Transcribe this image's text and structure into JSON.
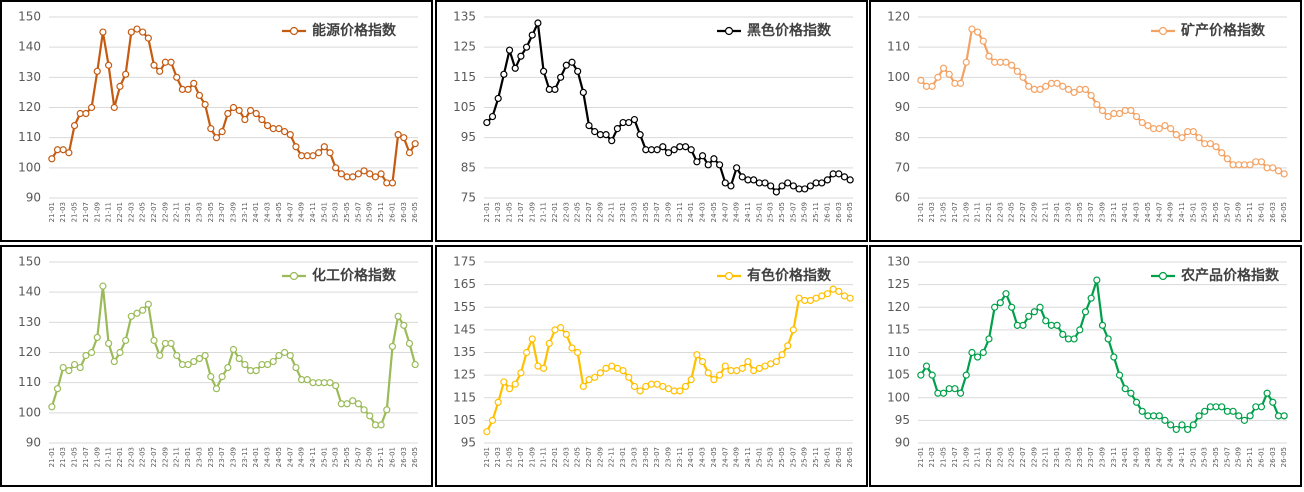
{
  "chart_data": [
    {
      "type": "line",
      "legend": "top-right",
      "grid": true,
      "categories": [
        "21-01",
        null,
        "21-03",
        null,
        "21-05",
        null,
        "21-07",
        null,
        "21-09",
        null,
        "21-11",
        null,
        "22-01",
        null,
        "22-03",
        null,
        "22-05",
        null,
        "22-07",
        null,
        "22-09",
        null,
        "22-11",
        null,
        "23-01",
        null,
        "23-03",
        null,
        "23-05",
        null,
        "23-07",
        null,
        "23-09",
        null,
        "23-11",
        null,
        "24-01",
        null,
        "24-03",
        null,
        "24-05",
        null,
        "24-07",
        null,
        "24-09",
        null,
        "24-11",
        null,
        "25-01",
        null,
        "25-03",
        null,
        "25-05",
        null,
        "25-07",
        null,
        "25-09",
        null,
        "25-11",
        null,
        "26-01",
        null,
        "26-03",
        null,
        "26-05"
      ],
      "series": [
        {
          "name": "能源价格指数",
          "color": "#c55a11",
          "values": [
            103,
            106,
            106,
            105,
            114,
            118,
            118,
            120,
            132,
            145,
            134,
            120,
            127,
            131,
            145,
            146,
            145,
            143,
            134,
            132,
            135,
            135,
            130,
            126,
            126,
            128,
            124,
            121,
            113,
            110,
            112,
            118,
            120,
            119,
            116,
            119,
            118,
            116,
            114,
            113,
            113,
            112,
            111,
            107,
            104,
            104,
            104,
            105,
            107,
            105,
            100,
            98,
            97,
            97,
            98,
            99,
            98,
            97,
            98,
            95,
            95,
            111,
            110,
            105,
            108
          ]
        }
      ],
      "ylim": [
        90,
        150
      ],
      "yticks": [
        90,
        100,
        110,
        120,
        130,
        140,
        150
      ]
    },
    {
      "type": "line",
      "legend": "top-right",
      "grid": true,
      "categories": [
        "21-01",
        null,
        "21-03",
        null,
        "21-05",
        null,
        "21-07",
        null,
        "21-09",
        null,
        "21-11",
        null,
        "22-01",
        null,
        "22-03",
        null,
        "22-05",
        null,
        "22-07",
        null,
        "22-09",
        null,
        "22-11",
        null,
        "23-01",
        null,
        "23-03",
        null,
        "23-05",
        null,
        "23-07",
        null,
        "23-09",
        null,
        "23-11",
        null,
        "24-01",
        null,
        "24-03",
        null,
        "24-05",
        null,
        "24-07",
        null,
        "24-09",
        null,
        "24-11",
        null,
        "25-01",
        null,
        "25-03",
        null,
        "25-05",
        null,
        "25-07",
        null,
        "25-09",
        null,
        "25-11",
        null,
        "26-01",
        null,
        "26-03",
        null,
        "26-05"
      ],
      "series": [
        {
          "name": "黑色价格指数",
          "color": "#000000",
          "values": [
            100,
            102,
            108,
            116,
            124,
            118,
            122,
            125,
            129,
            133,
            117,
            111,
            111,
            115,
            119,
            120,
            117,
            110,
            99,
            97,
            96,
            96,
            94,
            98,
            100,
            100,
            101,
            96,
            91,
            91,
            91,
            92,
            90,
            91,
            92,
            92,
            91,
            87,
            89,
            86,
            88,
            86,
            80,
            79,
            85,
            82,
            81,
            81,
            80,
            80,
            79,
            77,
            79,
            80,
            79,
            78,
            78,
            79,
            80,
            80,
            81,
            83,
            83,
            82,
            81
          ]
        }
      ],
      "ylim": [
        75,
        135
      ],
      "yticks": [
        75,
        85,
        95,
        105,
        115,
        125,
        135
      ]
    },
    {
      "type": "line",
      "legend": "top-right",
      "grid": true,
      "categories": [
        "21-01",
        null,
        "21-03",
        null,
        "21-05",
        null,
        "21-07",
        null,
        "21-09",
        null,
        "21-11",
        null,
        "22-01",
        null,
        "22-03",
        null,
        "22-05",
        null,
        "22-07",
        null,
        "22-09",
        null,
        "22-11",
        null,
        "23-01",
        null,
        "23-03",
        null,
        "23-05",
        null,
        "23-07",
        null,
        "23-09",
        null,
        "23-11",
        null,
        "24-01",
        null,
        "24-03",
        null,
        "24-05",
        null,
        "24-07",
        null,
        "24-09",
        null,
        "24-11",
        null,
        "25-01",
        null,
        "25-03",
        null,
        "25-05",
        null,
        "25-07",
        null,
        "25-09",
        null,
        "25-11",
        null,
        "26-01",
        null,
        "26-03",
        null,
        "26-05"
      ],
      "series": [
        {
          "name": "矿产价格指数",
          "color": "#f4a263",
          "values": [
            99,
            97,
            97,
            100,
            103,
            101,
            98,
            98,
            105,
            116,
            115,
            112,
            107,
            105,
            105,
            105,
            104,
            102,
            100,
            97,
            96,
            96,
            97,
            98,
            98,
            97,
            96,
            95,
            96,
            96,
            94,
            91,
            89,
            87,
            88,
            88,
            89,
            89,
            87,
            85,
            84,
            83,
            83,
            84,
            83,
            81,
            80,
            82,
            82,
            80,
            78,
            78,
            77,
            75,
            73,
            71,
            71,
            71,
            71,
            72,
            72,
            70,
            70,
            69,
            68
          ]
        }
      ],
      "ylim": [
        60,
        120
      ],
      "yticks": [
        60,
        70,
        80,
        90,
        100,
        110,
        120
      ]
    },
    {
      "type": "line",
      "legend": "top-right",
      "grid": true,
      "categories": [
        "21-01",
        null,
        "21-03",
        null,
        "21-05",
        null,
        "21-07",
        null,
        "21-09",
        null,
        "21-11",
        null,
        "22-01",
        null,
        "22-03",
        null,
        "22-05",
        null,
        "22-07",
        null,
        "22-09",
        null,
        "22-11",
        null,
        "23-01",
        null,
        "23-03",
        null,
        "23-05",
        null,
        "23-07",
        null,
        "23-09",
        null,
        "23-11",
        null,
        "24-01",
        null,
        "24-03",
        null,
        "24-05",
        null,
        "24-07",
        null,
        "24-09",
        null,
        "24-11",
        null,
        "25-01",
        null,
        "25-03",
        null,
        "25-05",
        null,
        "25-07",
        null,
        "25-09",
        null,
        "25-11",
        null,
        "26-01",
        null,
        "26-03",
        null,
        "26-05"
      ],
      "series": [
        {
          "name": "化工价格指数",
          "color": "#9bbb59",
          "values": [
            102,
            108,
            115,
            114,
            116,
            115,
            119,
            120,
            125,
            142,
            123,
            117,
            120,
            124,
            132,
            133,
            134,
            136,
            124,
            119,
            123,
            123,
            119,
            116,
            116,
            117,
            118,
            119,
            112,
            108,
            112,
            115,
            121,
            118,
            116,
            114,
            114,
            116,
            116,
            117,
            119,
            120,
            119,
            115,
            111,
            111,
            110,
            110,
            110,
            110,
            109,
            103,
            103,
            104,
            103,
            101,
            99,
            96,
            96,
            101,
            122,
            132,
            129,
            123,
            116
          ]
        }
      ],
      "ylim": [
        90,
        150
      ],
      "yticks": [
        90,
        100,
        110,
        120,
        130,
        140,
        150
      ]
    },
    {
      "type": "line",
      "legend": "top-right",
      "grid": true,
      "categories": [
        "21-01",
        null,
        "21-03",
        null,
        "21-05",
        null,
        "21-07",
        null,
        "21-09",
        null,
        "21-11",
        null,
        "22-01",
        null,
        "22-03",
        null,
        "22-05",
        null,
        "22-07",
        null,
        "22-09",
        null,
        "22-11",
        null,
        "23-01",
        null,
        "23-03",
        null,
        "23-05",
        null,
        "23-07",
        null,
        "23-09",
        null,
        "23-11",
        null,
        "24-01",
        null,
        "24-03",
        null,
        "24-05",
        null,
        "24-07",
        null,
        "24-09",
        null,
        "24-11",
        null,
        "25-01",
        null,
        "25-03",
        null,
        "25-05",
        null,
        "25-07",
        null,
        "25-09",
        null,
        "25-11",
        null,
        "26-01",
        null,
        "26-03",
        null,
        "26-05"
      ],
      "series": [
        {
          "name": "有色价格指数",
          "color": "#ffc000",
          "values": [
            100,
            105,
            113,
            122,
            119,
            121,
            126,
            135,
            141,
            129,
            128,
            139,
            145,
            146,
            143,
            137,
            135,
            120,
            123,
            124,
            126,
            128,
            129,
            128,
            127,
            124,
            120,
            118,
            120,
            121,
            121,
            120,
            119,
            118,
            118,
            120,
            123,
            134,
            131,
            126,
            123,
            125,
            129,
            127,
            127,
            128,
            131,
            127,
            128,
            129,
            130,
            131,
            134,
            138,
            145,
            159,
            158,
            158,
            159,
            160,
            161,
            163,
            162,
            160,
            159
          ]
        }
      ],
      "ylim": [
        95,
        175
      ],
      "yticks": [
        95,
        105,
        115,
        125,
        135,
        145,
        155,
        165,
        175
      ]
    },
    {
      "type": "line",
      "legend": "top-right",
      "grid": true,
      "categories": [
        "21-01",
        null,
        "21-03",
        null,
        "21-05",
        null,
        "21-07",
        null,
        "21-09",
        null,
        "21-11",
        null,
        "22-01",
        null,
        "22-03",
        null,
        "22-05",
        null,
        "22-07",
        null,
        "22-09",
        null,
        "22-11",
        null,
        "23-01",
        null,
        "23-03",
        null,
        "23-05",
        null,
        "23-07",
        null,
        "23-09",
        null,
        "23-11",
        null,
        "24-01",
        null,
        "24-03",
        null,
        "24-05",
        null,
        "24-07",
        null,
        "24-09",
        null,
        "24-11",
        null,
        "25-01",
        null,
        "25-03",
        null,
        "25-05",
        null,
        "25-07",
        null,
        "25-09",
        null,
        "25-11",
        null,
        "26-01",
        null,
        "26-03",
        null,
        "26-05"
      ],
      "series": [
        {
          "name": "农产品价格指数",
          "color": "#00a04a",
          "values": [
            105,
            107,
            105,
            101,
            101,
            102,
            102,
            101,
            105,
            110,
            109,
            110,
            113,
            120,
            121,
            123,
            120,
            116,
            116,
            118,
            119,
            120,
            117,
            116,
            116,
            114,
            113,
            113,
            115,
            119,
            122,
            126,
            116,
            113,
            109,
            105,
            102,
            101,
            99,
            97,
            96,
            96,
            96,
            95,
            94,
            93,
            94,
            93,
            94,
            96,
            97,
            98,
            98,
            98,
            97,
            97,
            96,
            95,
            96,
            98,
            98,
            101,
            99,
            96,
            96
          ]
        }
      ],
      "ylim": [
        90,
        130
      ],
      "yticks": [
        90,
        95,
        100,
        105,
        110,
        115,
        120,
        125,
        130
      ]
    }
  ]
}
